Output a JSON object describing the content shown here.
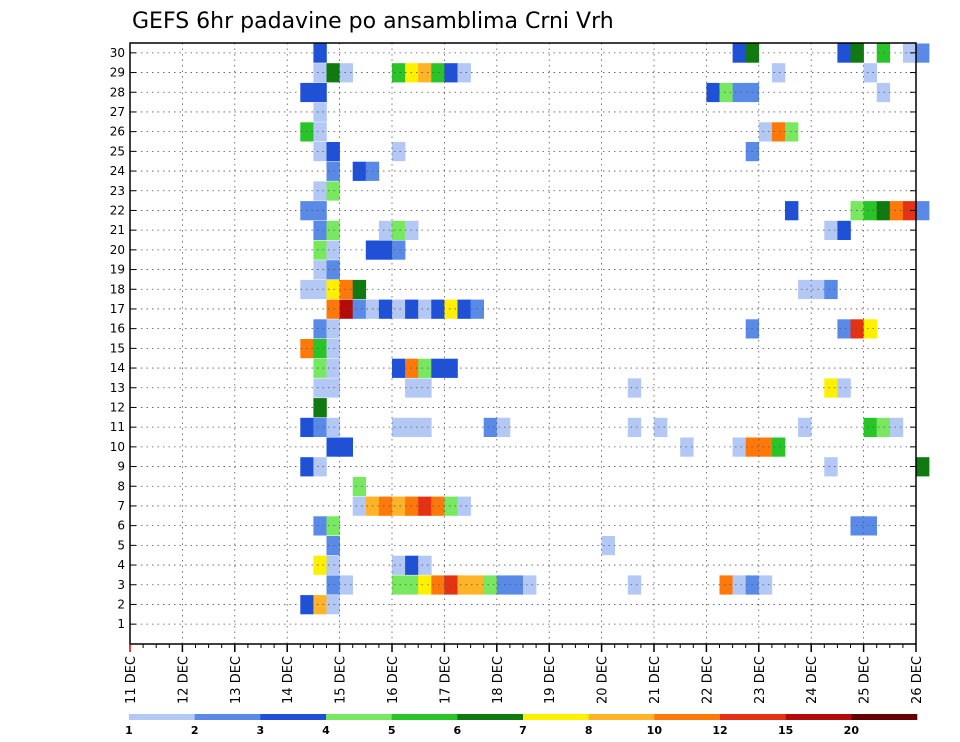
{
  "chart_data": {
    "type": "heatmap",
    "title": "GEFS 6hr padavine po ansamblima Crni Vrh",
    "y_members": [
      1,
      30
    ],
    "x_tick_labels": [
      "11 DEC",
      "12 DEC",
      "13 DEC",
      "14 DEC",
      "15 DEC",
      "16 DEC",
      "17 DEC",
      "18 DEC",
      "19 DEC",
      "20 DEC",
      "21 DEC",
      "22 DEC",
      "23 DEC",
      "24 DEC",
      "25 DEC",
      "26 DEC"
    ],
    "x_range_days": [
      0,
      15
    ],
    "grid": "dotted",
    "colorbar": {
      "labels": [
        "1",
        "2",
        "3",
        "4",
        "5",
        "6",
        "7",
        "8",
        "10",
        "12",
        "15",
        "20"
      ],
      "colors": [
        "#b4c8f5",
        "#5a8ae8",
        "#1e50d8",
        "#78e860",
        "#28c428",
        "#0f7a0f",
        "#fff000",
        "#ffb428",
        "#ff780a",
        "#e63214",
        "#b40a0a",
        "#640000"
      ]
    },
    "cells": [
      {
        "m": 30,
        "t": 14,
        "c": 2
      },
      {
        "m": 30,
        "t": 46,
        "c": 2
      },
      {
        "m": 30,
        "t": 47,
        "c": 5
      },
      {
        "m": 30,
        "t": 54,
        "c": 2
      },
      {
        "m": 30,
        "t": 55,
        "c": 5
      },
      {
        "m": 30,
        "t": 57,
        "c": 4
      },
      {
        "m": 30,
        "t": 59,
        "c": 0
      },
      {
        "m": 30,
        "t": 60,
        "c": 1
      },
      {
        "m": 29,
        "t": 14,
        "c": 0
      },
      {
        "m": 29,
        "t": 15,
        "c": 5
      },
      {
        "m": 29,
        "t": 16,
        "c": 0
      },
      {
        "m": 29,
        "t": 20,
        "c": 4
      },
      {
        "m": 29,
        "t": 21,
        "c": 6
      },
      {
        "m": 29,
        "t": 22,
        "c": 7
      },
      {
        "m": 29,
        "t": 23,
        "c": 4
      },
      {
        "m": 29,
        "t": 24,
        "c": 2
      },
      {
        "m": 29,
        "t": 25,
        "c": 0
      },
      {
        "m": 29,
        "t": 49,
        "c": 0
      },
      {
        "m": 29,
        "t": 56,
        "c": 0
      },
      {
        "m": 28,
        "t": 13,
        "c": 2
      },
      {
        "m": 28,
        "t": 14,
        "c": 2
      },
      {
        "m": 28,
        "t": 44,
        "c": 2
      },
      {
        "m": 28,
        "t": 45,
        "c": 3
      },
      {
        "m": 28,
        "t": 46,
        "c": 1
      },
      {
        "m": 28,
        "t": 47,
        "c": 1
      },
      {
        "m": 28,
        "t": 57,
        "c": 0
      },
      {
        "m": 27,
        "t": 14,
        "c": 0
      },
      {
        "m": 26,
        "t": 13,
        "c": 4
      },
      {
        "m": 26,
        "t": 14,
        "c": 0
      },
      {
        "m": 26,
        "t": 48,
        "c": 0
      },
      {
        "m": 26,
        "t": 49,
        "c": 8
      },
      {
        "m": 26,
        "t": 50,
        "c": 3
      },
      {
        "m": 25,
        "t": 14,
        "c": 0
      },
      {
        "m": 25,
        "t": 15,
        "c": 2
      },
      {
        "m": 25,
        "t": 20,
        "c": 0
      },
      {
        "m": 25,
        "t": 47,
        "c": 1
      },
      {
        "m": 24,
        "t": 15,
        "c": 1
      },
      {
        "m": 24,
        "t": 17,
        "c": 2
      },
      {
        "m": 24,
        "t": 18,
        "c": 1
      },
      {
        "m": 23,
        "t": 14,
        "c": 0
      },
      {
        "m": 23,
        "t": 15,
        "c": 3
      },
      {
        "m": 22,
        "t": 13,
        "c": 1
      },
      {
        "m": 22,
        "t": 14,
        "c": 1
      },
      {
        "m": 22,
        "t": 50,
        "c": 2
      },
      {
        "m": 22,
        "t": 55,
        "c": 3
      },
      {
        "m": 22,
        "t": 56,
        "c": 4
      },
      {
        "m": 22,
        "t": 57,
        "c": 5
      },
      {
        "m": 22,
        "t": 58,
        "c": 8
      },
      {
        "m": 22,
        "t": 59,
        "c": 9
      },
      {
        "m": 22,
        "t": 60,
        "c": 1
      },
      {
        "m": 21,
        "t": 14,
        "c": 1
      },
      {
        "m": 21,
        "t": 15,
        "c": 3
      },
      {
        "m": 21,
        "t": 19,
        "c": 0
      },
      {
        "m": 21,
        "t": 20,
        "c": 3
      },
      {
        "m": 21,
        "t": 21,
        "c": 0
      },
      {
        "m": 21,
        "t": 53,
        "c": 0
      },
      {
        "m": 21,
        "t": 54,
        "c": 2
      },
      {
        "m": 20,
        "t": 14,
        "c": 3
      },
      {
        "m": 20,
        "t": 15,
        "c": 0
      },
      {
        "m": 20,
        "t": 18,
        "c": 2
      },
      {
        "m": 20,
        "t": 19,
        "c": 2
      },
      {
        "m": 20,
        "t": 20,
        "c": 1
      },
      {
        "m": 19,
        "t": 14,
        "c": 0
      },
      {
        "m": 19,
        "t": 15,
        "c": 1
      },
      {
        "m": 18,
        "t": 13,
        "c": 0
      },
      {
        "m": 18,
        "t": 14,
        "c": 0
      },
      {
        "m": 18,
        "t": 15,
        "c": 6
      },
      {
        "m": 18,
        "t": 16,
        "c": 8
      },
      {
        "m": 18,
        "t": 17,
        "c": 5
      },
      {
        "m": 18,
        "t": 51,
        "c": 0
      },
      {
        "m": 18,
        "t": 52,
        "c": 0
      },
      {
        "m": 18,
        "t": 53,
        "c": 1
      },
      {
        "m": 17,
        "t": 15,
        "c": 8
      },
      {
        "m": 17,
        "t": 16,
        "c": 10
      },
      {
        "m": 17,
        "t": 17,
        "c": 1
      },
      {
        "m": 17,
        "t": 18,
        "c": 0
      },
      {
        "m": 17,
        "t": 19,
        "c": 2
      },
      {
        "m": 17,
        "t": 20,
        "c": 0
      },
      {
        "m": 17,
        "t": 21,
        "c": 2
      },
      {
        "m": 17,
        "t": 22,
        "c": 0
      },
      {
        "m": 17,
        "t": 23,
        "c": 2
      },
      {
        "m": 17,
        "t": 24,
        "c": 6
      },
      {
        "m": 17,
        "t": 25,
        "c": 2
      },
      {
        "m": 17,
        "t": 26,
        "c": 1
      },
      {
        "m": 16,
        "t": 14,
        "c": 1
      },
      {
        "m": 16,
        "t": 15,
        "c": 0
      },
      {
        "m": 16,
        "t": 47,
        "c": 1
      },
      {
        "m": 16,
        "t": 54,
        "c": 1
      },
      {
        "m": 16,
        "t": 55,
        "c": 9
      },
      {
        "m": 16,
        "t": 56,
        "c": 6
      },
      {
        "m": 15,
        "t": 13,
        "c": 8
      },
      {
        "m": 15,
        "t": 14,
        "c": 4
      },
      {
        "m": 15,
        "t": 15,
        "c": 0
      },
      {
        "m": 14,
        "t": 14,
        "c": 3
      },
      {
        "m": 14,
        "t": 15,
        "c": 0
      },
      {
        "m": 14,
        "t": 20,
        "c": 2
      },
      {
        "m": 14,
        "t": 21,
        "c": 8
      },
      {
        "m": 14,
        "t": 22,
        "c": 3
      },
      {
        "m": 14,
        "t": 23,
        "c": 2
      },
      {
        "m": 14,
        "t": 24,
        "c": 2
      },
      {
        "m": 13,
        "t": 14,
        "c": 0
      },
      {
        "m": 13,
        "t": 15,
        "c": 0
      },
      {
        "m": 13,
        "t": 21,
        "c": 0
      },
      {
        "m": 13,
        "t": 22,
        "c": 0
      },
      {
        "m": 13,
        "t": 38,
        "c": 0
      },
      {
        "m": 13,
        "t": 53,
        "c": 6
      },
      {
        "m": 13,
        "t": 54,
        "c": 0
      },
      {
        "m": 12,
        "t": 14,
        "c": 5
      },
      {
        "m": 11,
        "t": 13,
        "c": 2
      },
      {
        "m": 11,
        "t": 14,
        "c": 1
      },
      {
        "m": 11,
        "t": 15,
        "c": 0
      },
      {
        "m": 11,
        "t": 20,
        "c": 0
      },
      {
        "m": 11,
        "t": 21,
        "c": 0
      },
      {
        "m": 11,
        "t": 22,
        "c": 0
      },
      {
        "m": 11,
        "t": 27,
        "c": 1
      },
      {
        "m": 11,
        "t": 28,
        "c": 0
      },
      {
        "m": 11,
        "t": 38,
        "c": 0
      },
      {
        "m": 11,
        "t": 40,
        "c": 0
      },
      {
        "m": 11,
        "t": 51,
        "c": 0
      },
      {
        "m": 11,
        "t": 56,
        "c": 4
      },
      {
        "m": 11,
        "t": 57,
        "c": 3
      },
      {
        "m": 11,
        "t": 58,
        "c": 0
      },
      {
        "m": 10,
        "t": 15,
        "c": 2
      },
      {
        "m": 10,
        "t": 16,
        "c": 2
      },
      {
        "m": 10,
        "t": 42,
        "c": 0
      },
      {
        "m": 10,
        "t": 46,
        "c": 0
      },
      {
        "m": 10,
        "t": 47,
        "c": 8
      },
      {
        "m": 10,
        "t": 48,
        "c": 8
      },
      {
        "m": 10,
        "t": 49,
        "c": 4
      },
      {
        "m": 9,
        "t": 13,
        "c": 2
      },
      {
        "m": 9,
        "t": 14,
        "c": 0
      },
      {
        "m": 9,
        "t": 53,
        "c": 0
      },
      {
        "m": 9,
        "t": 60,
        "c": 5
      },
      {
        "m": 8,
        "t": 17,
        "c": 3
      },
      {
        "m": 7,
        "t": 17,
        "c": 0
      },
      {
        "m": 7,
        "t": 18,
        "c": 7
      },
      {
        "m": 7,
        "t": 19,
        "c": 8
      },
      {
        "m": 7,
        "t": 20,
        "c": 7
      },
      {
        "m": 7,
        "t": 21,
        "c": 8
      },
      {
        "m": 7,
        "t": 22,
        "c": 9
      },
      {
        "m": 7,
        "t": 23,
        "c": 8
      },
      {
        "m": 7,
        "t": 24,
        "c": 3
      },
      {
        "m": 7,
        "t": 25,
        "c": 0
      },
      {
        "m": 6,
        "t": 14,
        "c": 1
      },
      {
        "m": 6,
        "t": 15,
        "c": 3
      },
      {
        "m": 6,
        "t": 55,
        "c": 1
      },
      {
        "m": 6,
        "t": 56,
        "c": 1
      },
      {
        "m": 5,
        "t": 15,
        "c": 1
      },
      {
        "m": 5,
        "t": 36,
        "c": 0
      },
      {
        "m": 4,
        "t": 14,
        "c": 6
      },
      {
        "m": 4,
        "t": 15,
        "c": 0
      },
      {
        "m": 4,
        "t": 20,
        "c": 0
      },
      {
        "m": 4,
        "t": 21,
        "c": 2
      },
      {
        "m": 4,
        "t": 22,
        "c": 0
      },
      {
        "m": 3,
        "t": 15,
        "c": 1
      },
      {
        "m": 3,
        "t": 16,
        "c": 0
      },
      {
        "m": 3,
        "t": 20,
        "c": 3
      },
      {
        "m": 3,
        "t": 21,
        "c": 3
      },
      {
        "m": 3,
        "t": 22,
        "c": 6
      },
      {
        "m": 3,
        "t": 23,
        "c": 8
      },
      {
        "m": 3,
        "t": 24,
        "c": 9
      },
      {
        "m": 3,
        "t": 25,
        "c": 7
      },
      {
        "m": 3,
        "t": 26,
        "c": 7
      },
      {
        "m": 3,
        "t": 27,
        "c": 3
      },
      {
        "m": 3,
        "t": 28,
        "c": 1
      },
      {
        "m": 3,
        "t": 29,
        "c": 1
      },
      {
        "m": 3,
        "t": 30,
        "c": 0
      },
      {
        "m": 3,
        "t": 38,
        "c": 0
      },
      {
        "m": 3,
        "t": 45,
        "c": 8
      },
      {
        "m": 3,
        "t": 46,
        "c": 0
      },
      {
        "m": 3,
        "t": 47,
        "c": 1
      },
      {
        "m": 3,
        "t": 48,
        "c": 0
      },
      {
        "m": 2,
        "t": 13,
        "c": 2
      },
      {
        "m": 2,
        "t": 14,
        "c": 7
      },
      {
        "m": 2,
        "t": 15,
        "c": 0
      }
    ]
  }
}
